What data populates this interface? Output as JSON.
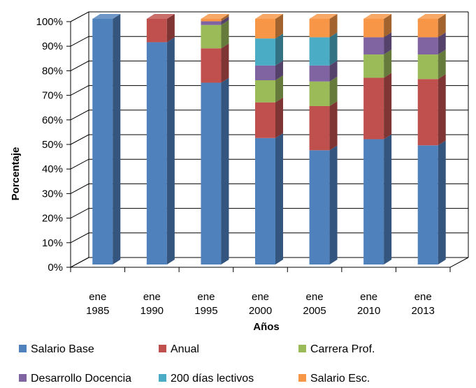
{
  "chart_data": {
    "type": "bar",
    "stacked": true,
    "three_d": true,
    "categories": [
      [
        "ene",
        "1985"
      ],
      [
        "ene",
        "1990"
      ],
      [
        "ene",
        "1995"
      ],
      [
        "ene",
        "2000"
      ],
      [
        "ene",
        "2005"
      ],
      [
        "ene",
        "2010"
      ],
      [
        "ene",
        "2013"
      ]
    ],
    "xlabel": "Años",
    "ylabel": "Porcentaje",
    "ylim": [
      0,
      100
    ],
    "yticks": [
      "0%",
      "10%",
      "20%",
      "30%",
      "40%",
      "50%",
      "60%",
      "70%",
      "80%",
      "90%",
      "100%"
    ],
    "grid": true,
    "legend_position": "bottom",
    "series": [
      {
        "name": "Salario Base",
        "color": "#4F81BD",
        "values": [
          100,
          90.5,
          74,
          51.5,
          46.5,
          51,
          48.5
        ]
      },
      {
        "name": "Anual",
        "color": "#C0504D",
        "values": [
          0,
          9.5,
          14,
          14.5,
          18,
          25,
          27
        ]
      },
      {
        "name": "Carrera Prof.",
        "color": "#9BBB59",
        "values": [
          0,
          0,
          9.5,
          9,
          10,
          9.5,
          10
        ]
      },
      {
        "name": "Desarrollo Docencia",
        "color": "#8064A2",
        "values": [
          0,
          0,
          1.5,
          6,
          6.5,
          7,
          7
        ]
      },
      {
        "name": "200 días lectivos",
        "color": "#4BACC6",
        "values": [
          0,
          0,
          0,
          11,
          11.5,
          0,
          0
        ]
      },
      {
        "name": "Salario Esc.",
        "color": "#F79646",
        "values": [
          0,
          0,
          1,
          8,
          7.5,
          7.5,
          7.5
        ]
      }
    ]
  }
}
